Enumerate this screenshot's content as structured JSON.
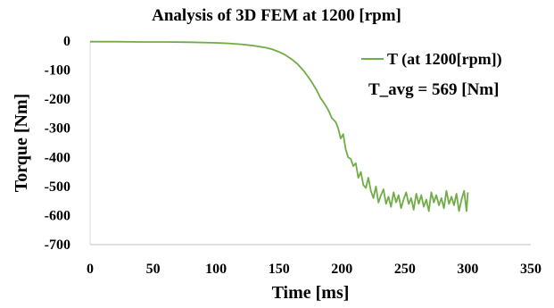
{
  "chart_data": {
    "type": "line",
    "title": "Analysis of 3D FEM at 1200 [rpm]",
    "xlabel": "Time [ms]",
    "ylabel": "Torque [Nm]",
    "xlim": [
      0,
      350
    ],
    "ylim": [
      -700,
      0
    ],
    "xticks": [
      0,
      50,
      100,
      150,
      200,
      250,
      300,
      350
    ],
    "yticks": [
      0,
      -100,
      -200,
      -300,
      -400,
      -500,
      -600,
      -700
    ],
    "grid": false,
    "legend_position": "top-right",
    "annotation": "T_avg = 569 [Nm]",
    "series": [
      {
        "name": "T (at 1200[rpm])",
        "color": "#70AD47",
        "x": [
          0,
          20,
          40,
          60,
          80,
          100,
          110,
          120,
          130,
          140,
          145,
          150,
          155,
          160,
          165,
          170,
          175,
          180,
          183,
          186,
          189,
          192,
          195,
          197,
          199,
          201,
          203,
          205,
          207,
          209,
          211,
          213,
          215,
          217,
          219,
          221,
          223,
          225,
          227,
          229,
          231,
          233,
          235,
          237,
          239,
          241,
          243,
          245,
          247,
          249,
          251,
          253,
          255,
          257,
          259,
          261,
          263,
          265,
          267,
          269,
          271,
          273,
          275,
          277,
          279,
          281,
          283,
          285,
          287,
          289,
          291,
          293,
          295,
          297,
          299,
          300
        ],
        "values": [
          -2,
          -2,
          -3,
          -3,
          -4,
          -6,
          -8,
          -11,
          -16,
          -23,
          -29,
          -37,
          -48,
          -62,
          -80,
          -104,
          -134,
          -170,
          -196,
          -214,
          -236,
          -265,
          -278,
          -300,
          -335,
          -320,
          -372,
          -400,
          -405,
          -430,
          -420,
          -470,
          -450,
          -495,
          -505,
          -470,
          -515,
          -540,
          -500,
          -555,
          -530,
          -510,
          -560,
          -535,
          -570,
          -520,
          -555,
          -530,
          -575,
          -545,
          -520,
          -560,
          -540,
          -580,
          -525,
          -560,
          -530,
          -570,
          -545,
          -585,
          -520,
          -555,
          -530,
          -565,
          -540,
          -575,
          -515,
          -560,
          -535,
          -565,
          -525,
          -585,
          -545,
          -515,
          -585,
          -520
        ]
      }
    ]
  }
}
